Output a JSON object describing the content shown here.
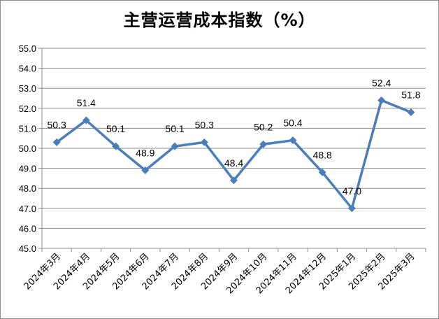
{
  "chart_data": {
    "type": "line",
    "title": "主营运营成本指数（%）",
    "xlabel": "",
    "ylabel": "",
    "categories": [
      "2024年3月",
      "2024年4月",
      "2024年5月",
      "2024年6月",
      "2024年7月",
      "2024年8月",
      "2024年9月",
      "2024年10月",
      "2024年11月",
      "2024年12月",
      "2025年1月",
      "2025年2月",
      "2025年3月"
    ],
    "series": [
      {
        "values": [
          50.3,
          51.4,
          50.1,
          48.9,
          50.1,
          50.3,
          48.4,
          50.2,
          50.4,
          48.8,
          47.0,
          52.4,
          51.8
        ],
        "labels": [
          "50.3",
          "51.4",
          "50.1",
          "48.9",
          "50.1",
          "50.3",
          "48.4",
          "50.2",
          "50.4",
          "48.8",
          "47.0",
          "52.4",
          "51.8"
        ],
        "color": "#4a7ebb",
        "marker": "diamond"
      }
    ],
    "ylim": [
      45.0,
      55.0
    ],
    "yticks": [
      "45.0",
      "46.0",
      "47.0",
      "48.0",
      "49.0",
      "50.0",
      "51.0",
      "52.0",
      "53.0",
      "54.0",
      "55.0"
    ],
    "grid": true,
    "gridColor": "#8c8c8c",
    "legend": "none"
  }
}
